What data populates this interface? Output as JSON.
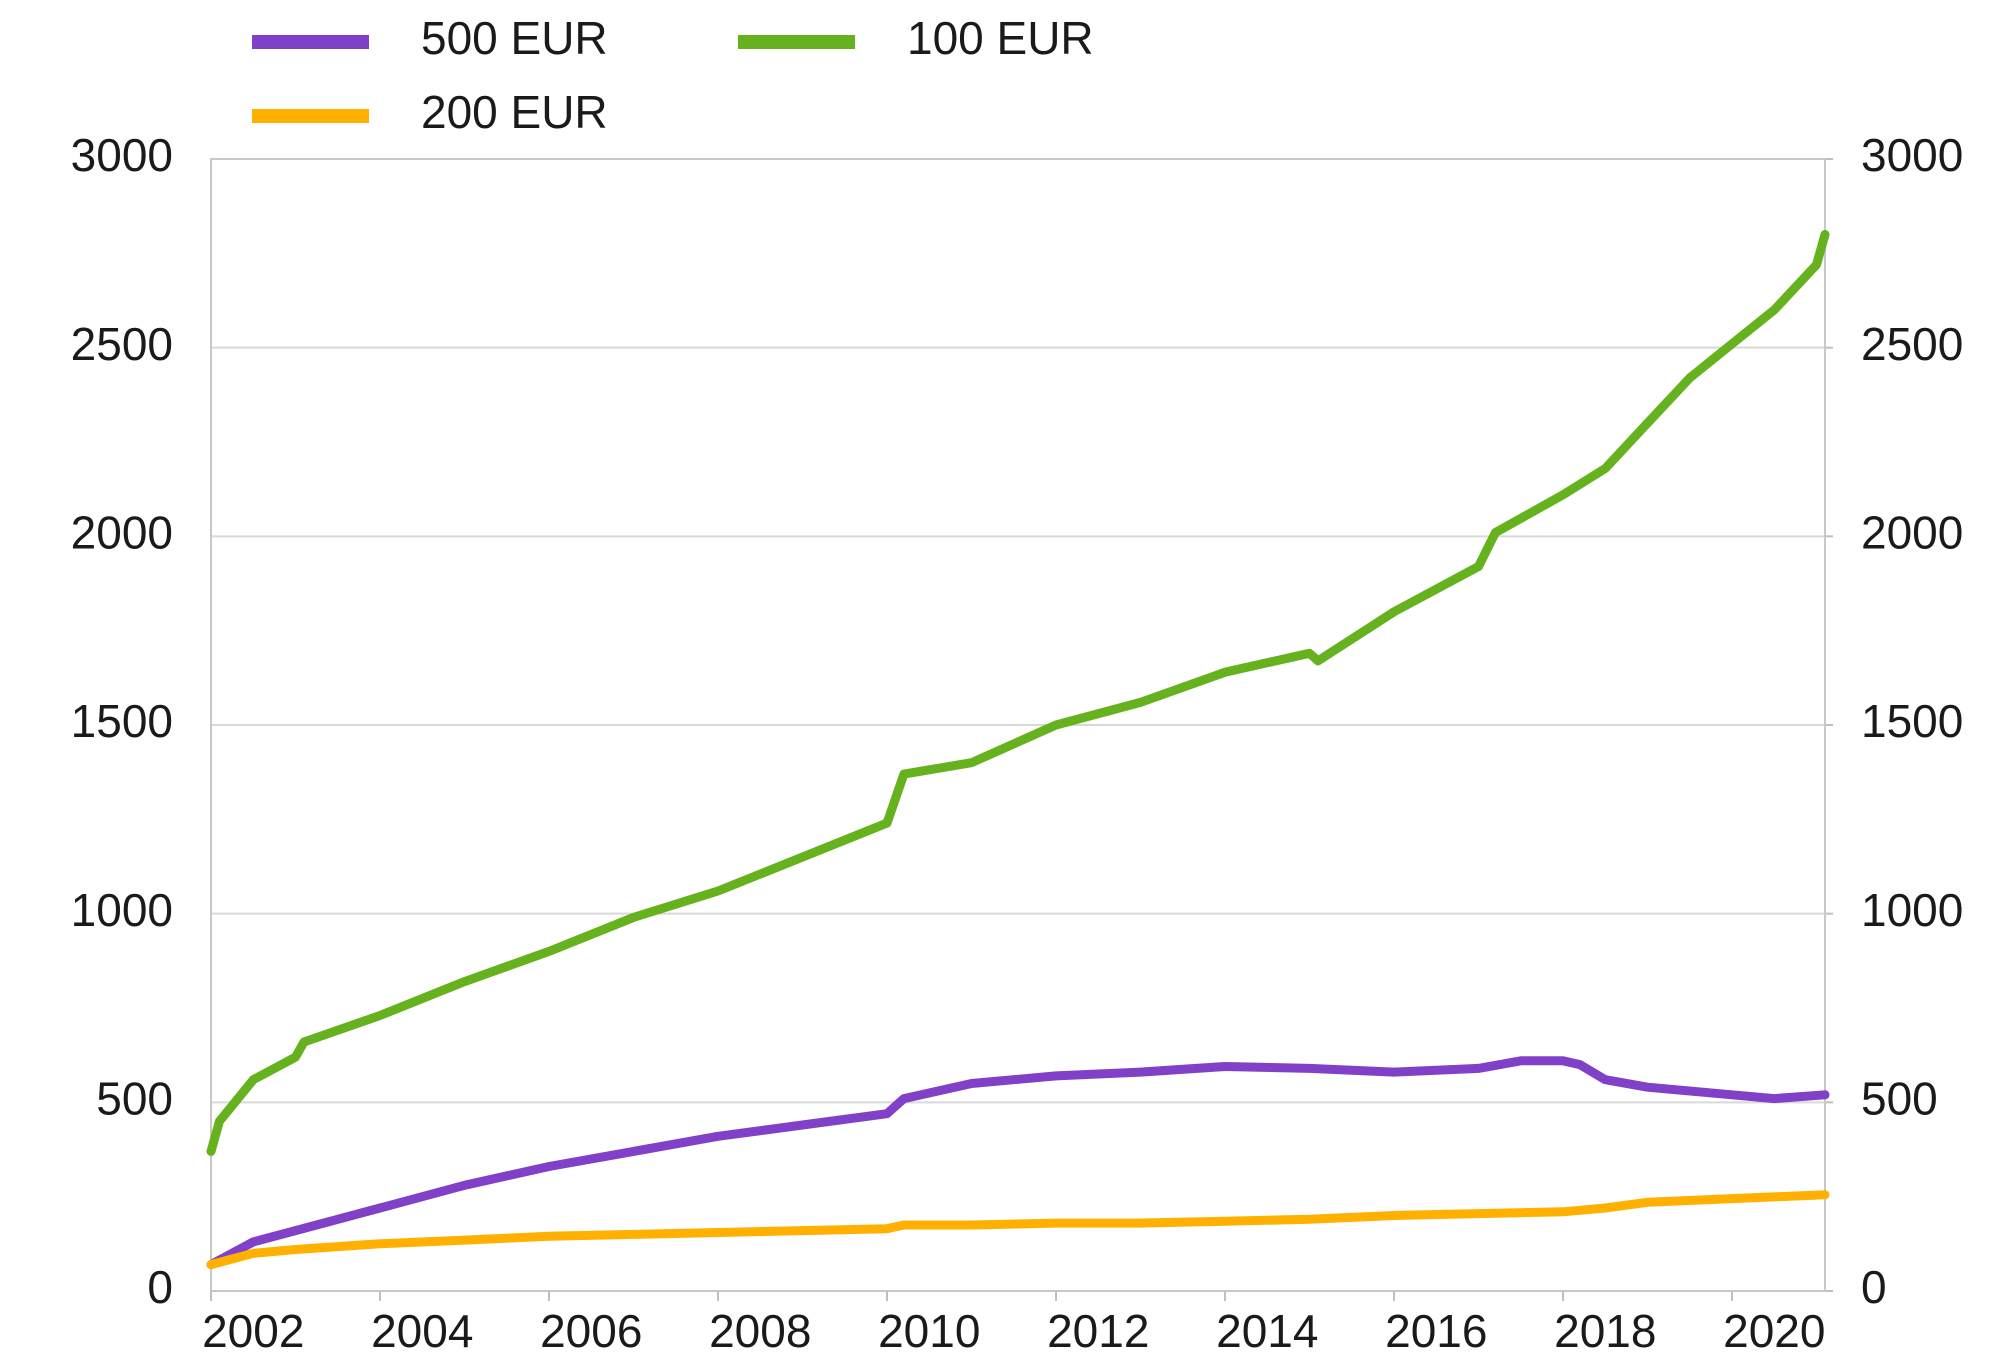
{
  "chart_data": {
    "type": "line",
    "series": [
      {
        "name": "500 EUR",
        "color": "#8040c8",
        "x": [
          2002,
          2002.5,
          2003,
          2004,
          2005,
          2006,
          2007,
          2008,
          2009,
          2010,
          2010.2,
          2011,
          2012,
          2013,
          2014,
          2015,
          2016,
          2017,
          2017.5,
          2018,
          2018.2,
          2018.5,
          2019,
          2020,
          2020.5,
          2021.1
        ],
        "values": [
          70,
          130,
          160,
          220,
          280,
          330,
          370,
          410,
          440,
          470,
          510,
          550,
          570,
          580,
          595,
          590,
          580,
          590,
          610,
          610,
          600,
          560,
          540,
          520,
          510,
          520
        ]
      },
      {
        "name": "200 EUR",
        "color": "#ffb000",
        "x": [
          2002,
          2002.5,
          2003,
          2004,
          2005,
          2006,
          2007,
          2008,
          2009,
          2010,
          2010.2,
          2011,
          2012,
          2013,
          2014,
          2015,
          2016,
          2017,
          2018,
          2018.5,
          2019,
          2020,
          2021.1
        ],
        "values": [
          70,
          100,
          110,
          125,
          135,
          145,
          150,
          155,
          160,
          165,
          175,
          175,
          180,
          180,
          185,
          190,
          200,
          205,
          210,
          220,
          235,
          245,
          255
        ]
      },
      {
        "name": "100 EUR",
        "color": "#66b21e",
        "x": [
          2002,
          2002.1,
          2002.5,
          2003,
          2003.1,
          2004,
          2005,
          2006,
          2007,
          2008,
          2009,
          2010,
          2010.2,
          2011,
          2012,
          2013,
          2014,
          2015,
          2015.1,
          2016,
          2017,
          2017.2,
          2018,
          2018.5,
          2019,
          2019.5,
          2020,
          2020.5,
          2021,
          2021.1
        ],
        "values": [
          370,
          450,
          560,
          620,
          660,
          730,
          820,
          900,
          990,
          1060,
          1150,
          1240,
          1370,
          1400,
          1500,
          1560,
          1640,
          1690,
          1670,
          1800,
          1920,
          2010,
          2110,
          2180,
          2300,
          2420,
          2510,
          2600,
          2720,
          2800
        ]
      }
    ],
    "xlim": [
      2002,
      2021.1
    ],
    "xticks": [
      2002,
      2004,
      2006,
      2008,
      2010,
      2012,
      2014,
      2016,
      2018,
      2020
    ],
    "ylim": [
      0,
      3000
    ],
    "yticks": [
      0,
      500,
      1000,
      1500,
      2000,
      2500,
      3000
    ],
    "y2lim": [
      0,
      3000
    ],
    "y2ticks": [
      0,
      500,
      1000,
      1500,
      2000,
      2500,
      3000
    ],
    "grid": true
  }
}
